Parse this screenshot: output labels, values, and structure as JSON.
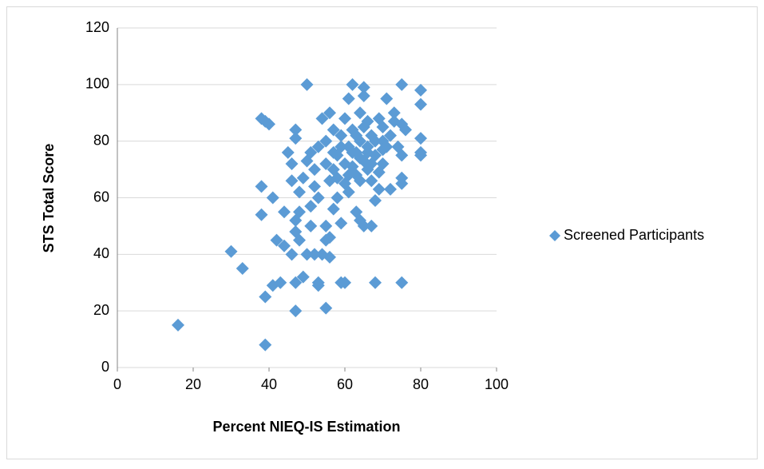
{
  "chart_data": {
    "type": "scatter",
    "x_label": "Percent NIEQ-IS Estimation",
    "y_label": "STS Total Score",
    "xlim": [
      0,
      100
    ],
    "xticks": [
      0,
      20,
      40,
      60,
      80,
      100
    ],
    "ylim": [
      0,
      120
    ],
    "yticks": [
      0,
      20,
      40,
      60,
      80,
      100,
      120
    ],
    "grid": true,
    "legend": "right",
    "x": [
      16,
      39,
      30,
      33,
      38,
      38,
      38,
      39,
      40,
      39,
      41,
      43,
      41,
      42,
      44,
      44,
      45,
      46,
      46,
      46,
      47,
      47,
      47,
      47,
      47,
      47,
      48,
      48,
      48,
      49,
      50,
      50,
      49,
      50,
      51,
      51,
      51,
      52,
      52,
      52,
      53,
      53,
      53,
      53,
      54,
      54,
      55,
      55,
      55,
      55,
      55,
      56,
      56,
      56,
      56,
      57,
      57,
      57,
      57,
      58,
      58,
      59,
      59,
      59,
      60,
      60,
      60,
      61,
      61,
      61,
      62,
      62,
      62,
      63,
      63,
      63,
      64,
      64,
      64,
      65,
      65,
      65,
      65,
      65,
      66,
      66,
      67,
      67,
      67,
      68,
      68,
      68,
      69,
      69,
      70,
      70,
      70,
      71,
      71,
      72,
      72,
      73,
      73,
      74,
      75,
      75,
      75,
      75,
      75,
      75,
      76,
      80,
      80,
      80,
      80,
      80,
      58,
      60,
      62,
      64,
      66,
      68,
      70,
      63,
      66,
      59,
      61,
      67,
      64,
      69
    ],
    "series": [
      {
        "name": "Screened Participants",
        "color": "#5b9bd5",
        "values": [
          15,
          8,
          41,
          35,
          54,
          64,
          88,
          87,
          86,
          25,
          29,
          30,
          60,
          45,
          43,
          55,
          76,
          72,
          66,
          40,
          20,
          30,
          48,
          52,
          84,
          81,
          55,
          62,
          45,
          32,
          100,
          40,
          67,
          73,
          50,
          57,
          76,
          40,
          64,
          70,
          29,
          30,
          78,
          60,
          88,
          40,
          21,
          45,
          50,
          72,
          80,
          39,
          90,
          46,
          66,
          56,
          70,
          76,
          84,
          60,
          75,
          30,
          51,
          82,
          30,
          65,
          88,
          95,
          62,
          78,
          100,
          71,
          84,
          55,
          68,
          76,
          80,
          90,
          52,
          99,
          96,
          50,
          73,
          85,
          78,
          87,
          50,
          66,
          82,
          30,
          59,
          75,
          63,
          88,
          72,
          80,
          85,
          95,
          78,
          63,
          82,
          87,
          90,
          78,
          100,
          86,
          75,
          65,
          67,
          30,
          84,
          98,
          93,
          81,
          76,
          75,
          67,
          72,
          76,
          74,
          70,
          80,
          77,
          82,
          76,
          78,
          68,
          72,
          66,
          69
        ]
      }
    ]
  }
}
